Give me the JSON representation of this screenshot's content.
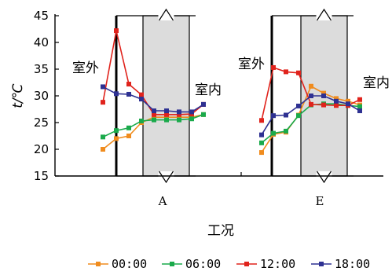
{
  "chart_data": {
    "type": "line",
    "ylabel": "t/℃",
    "xlabel": "工况",
    "ylim": [
      15,
      45
    ],
    "yticks": [
      "45",
      "40",
      "35",
      "30",
      "25",
      "20",
      "15"
    ],
    "ytick_values": [
      45,
      40,
      35,
      30,
      25,
      20,
      15
    ],
    "grid": false,
    "legend_position": "bottom",
    "series_colors": [
      "#f08c1e",
      "#1aaa4b",
      "#e0231c",
      "#2e3192"
    ],
    "legend": [
      "00:00",
      "06:00",
      "12:00",
      "18:00"
    ],
    "panels": [
      {
        "category": "A",
        "outside_label": "室外",
        "inside_label": "室内",
        "series": [
          {
            "name": "00:00",
            "values": [
              20.0,
              22.0,
              22.5,
              25.0,
              26.0,
              26.0,
              26.0,
              26.0,
              26.5
            ]
          },
          {
            "name": "06:00",
            "values": [
              22.3,
              23.5,
              24.0,
              25.3,
              25.5,
              25.5,
              25.5,
              25.7,
              26.5
            ]
          },
          {
            "name": "12:00",
            "values": [
              28.8,
              42.2,
              32.2,
              30.2,
              26.5,
              26.5,
              26.5,
              26.6,
              28.4
            ]
          },
          {
            "name": "18:00",
            "values": [
              31.7,
              30.4,
              30.3,
              29.4,
              27.2,
              27.2,
              27.0,
              27.0,
              28.4
            ]
          }
        ]
      },
      {
        "category": "E",
        "outside_label": "室外",
        "inside_label": "室内",
        "series": [
          {
            "name": "00:00",
            "values": [
              19.4,
              22.8,
              23.2,
              26.4,
              31.8,
              30.5,
              29.5,
              29.0,
              28.3
            ]
          },
          {
            "name": "06:00",
            "values": [
              21.2,
              23.0,
              23.4,
              26.3,
              28.3,
              28.5,
              28.5,
              28.2,
              28.0
            ]
          },
          {
            "name": "12:00",
            "values": [
              25.4,
              35.3,
              34.5,
              34.3,
              28.4,
              28.3,
              28.2,
              28.2,
              29.3
            ]
          },
          {
            "name": "18:00",
            "values": [
              22.7,
              26.3,
              26.4,
              28.1,
              30.0,
              30.0,
              29.0,
              28.5,
              27.2
            ]
          }
        ]
      }
    ]
  }
}
